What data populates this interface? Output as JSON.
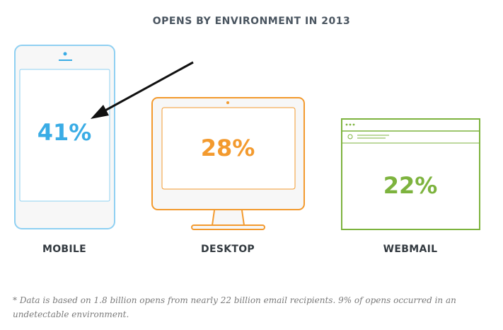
{
  "chart_data": {
    "type": "infographic",
    "title": "OPENS BY ENVIRONMENT IN 2013",
    "categories": [
      "MOBILE",
      "DESKTOP",
      "WEBMAIL"
    ],
    "values": [
      41,
      28,
      22
    ],
    "value_labels": [
      "41%",
      "28%",
      "22%"
    ],
    "unit": "%",
    "colors": [
      "#3aace5",
      "#f39a2e",
      "#7db33e"
    ],
    "footnote": "* Data is based on 1.8 billion opens from nearly 22 billion email recipients. 9% of opens occurred in an undetectable environment."
  }
}
